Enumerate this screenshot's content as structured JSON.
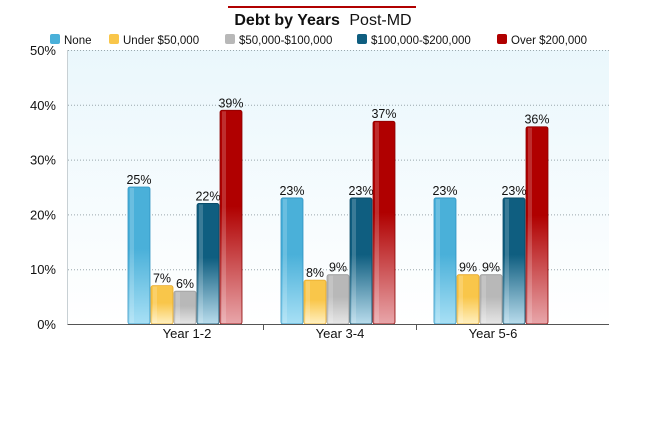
{
  "chart_data": {
    "type": "bar",
    "title": "Debt by Years",
    "title_suffix": "Post-MD",
    "categories": [
      "Year 1-2",
      "Year 3-4",
      "Year 5-6"
    ],
    "series": [
      {
        "name": "None",
        "values": [
          25,
          23,
          23
        ],
        "color": "#4ab0d9",
        "color_light": "#a8e0f5",
        "color_dark": "#2f93c2"
      },
      {
        "name": "Under $50,000",
        "values": [
          7,
          8,
          9
        ],
        "color": "#f9c64a",
        "color_light": "#fff0c0",
        "color_dark": "#e8a92a"
      },
      {
        "name": "$50,000-$100,000",
        "values": [
          6,
          9,
          9
        ],
        "color": "#b8b8b8",
        "color_light": "#e6e6e6",
        "color_dark": "#9a9a9a"
      },
      {
        "name": "$100,000-$200,000",
        "values": [
          22,
          23,
          23
        ],
        "color": "#0f5e80",
        "color_light": "#b9dcec",
        "color_dark": "#0a4a66"
      },
      {
        "name": "Over $200,000",
        "values": [
          39,
          37,
          36
        ],
        "color": "#b00000",
        "color_light": "#e8a6aa",
        "color_dark": "#8a0000"
      }
    ],
    "value_suffix": "%",
    "y_ticks": [
      "0%",
      "10%",
      "20%",
      "30%",
      "40%",
      "50%"
    ],
    "ylim": [
      0,
      50
    ],
    "legend_position": "top",
    "grid": true,
    "accent_color": "#b00000"
  }
}
